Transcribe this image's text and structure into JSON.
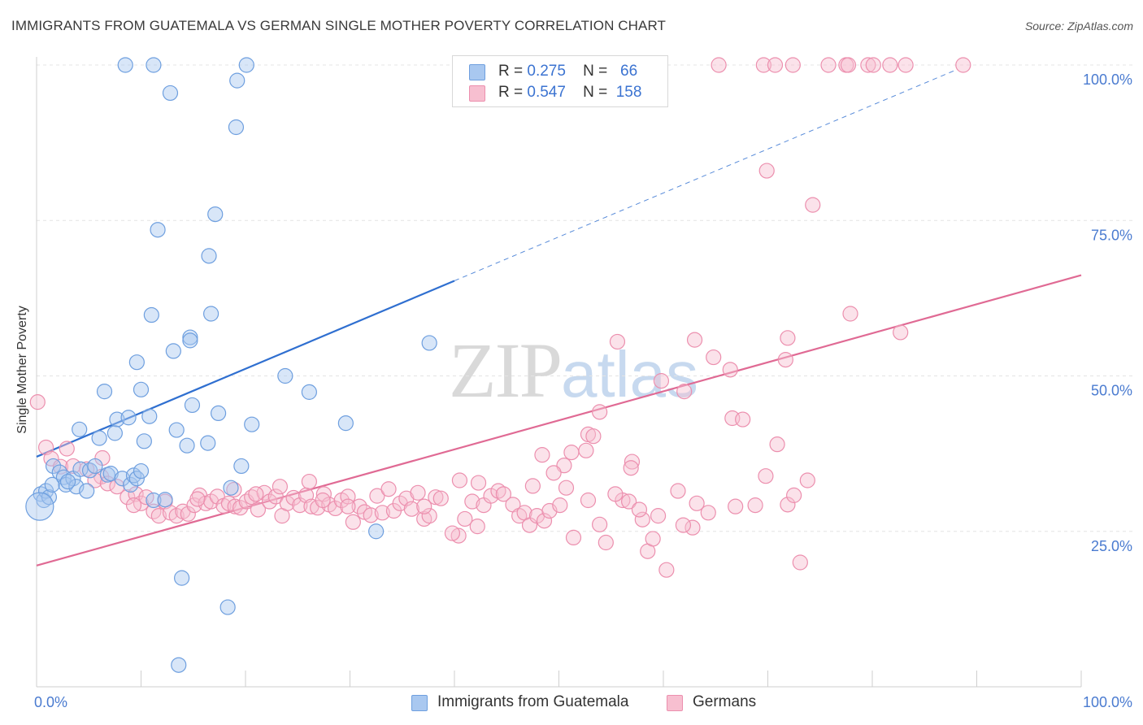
{
  "title": "IMMIGRANTS FROM GUATEMALA VS GERMAN SINGLE MOTHER POVERTY CORRELATION CHART",
  "source": "Source: ZipAtlas.com",
  "watermark": {
    "zip": "ZIP",
    "atlas": "atlas"
  },
  "legend": {
    "r_label": "R =",
    "n_label": "N =",
    "series": [
      {
        "r": "0.275",
        "n": "66",
        "color": "#a9c8f0",
        "border": "#6e9fdf"
      },
      {
        "r": "0.547",
        "n": "158",
        "color": "#f7bfd0",
        "border": "#ec8fae"
      }
    ]
  },
  "bottom_legend": [
    "Immigrants from Guatemala",
    "Germans"
  ],
  "chart_data": {
    "type": "scatter",
    "title": "IMMIGRANTS FROM GUATEMALA VS GERMAN SINGLE MOTHER POVERTY CORRELATION CHART",
    "xlabel": "",
    "ylabel": "Single Mother Poverty",
    "xlim": [
      0,
      100
    ],
    "ylim": [
      0,
      102
    ],
    "x_tick_labels": [
      "0.0%",
      "100.0%"
    ],
    "y_tick_labels": [
      "25.0%",
      "50.0%",
      "75.0%",
      "100.0%"
    ],
    "y_ticks": [
      25,
      50,
      75,
      100
    ],
    "grid": true,
    "legend_position": "top-center",
    "series": [
      {
        "name": "Immigrants from Guatemala",
        "color": "#6e9fdf",
        "fill": "rgba(169,200,240,0.45)",
        "trend": {
          "x0": 0,
          "y0": 37.0,
          "x1": 40,
          "y1": 65.3,
          "dash_to_x": 88,
          "dash_to_y": 99.2,
          "color": "#2f6fd0"
        },
        "points": [
          [
            8.5,
            100
          ],
          [
            11.2,
            100
          ],
          [
            20.1,
            100
          ],
          [
            19.2,
            97.5
          ],
          [
            12.8,
            95.5
          ],
          [
            19.1,
            90
          ],
          [
            17.1,
            76
          ],
          [
            11.6,
            73.5
          ],
          [
            16.5,
            69.3
          ],
          [
            16.7,
            60
          ],
          [
            11,
            59.8
          ],
          [
            14.7,
            56.2
          ],
          [
            14.7,
            55.7
          ],
          [
            37.6,
            55.3
          ],
          [
            13.1,
            54
          ],
          [
            9.6,
            52.2
          ],
          [
            23.8,
            50
          ],
          [
            10,
            47.8
          ],
          [
            6.5,
            47.5
          ],
          [
            26.1,
            47.4
          ],
          [
            14.9,
            45.3
          ],
          [
            7.7,
            43
          ],
          [
            8.8,
            43.3
          ],
          [
            10.8,
            43.5
          ],
          [
            17.4,
            44
          ],
          [
            29.6,
            42.4
          ],
          [
            20.6,
            42.2
          ],
          [
            4.1,
            41.4
          ],
          [
            13.4,
            41.3
          ],
          [
            7.5,
            40.8
          ],
          [
            6,
            40
          ],
          [
            10.3,
            39.5
          ],
          [
            14.4,
            38.8
          ],
          [
            16.4,
            39.2
          ],
          [
            0.4,
            31
          ],
          [
            0.7,
            30
          ],
          [
            0.9,
            31.5
          ],
          [
            1.2,
            30.5
          ],
          [
            1.5,
            32.5
          ],
          [
            1.6,
            35.5
          ],
          [
            2.2,
            34.5
          ],
          [
            2.6,
            33.7
          ],
          [
            2.8,
            32.5
          ],
          [
            3.5,
            33.5
          ],
          [
            3.8,
            32.2
          ],
          [
            4.2,
            35
          ],
          [
            5.1,
            34.8
          ],
          [
            5.6,
            35.5
          ],
          [
            6.8,
            34.1
          ],
          [
            7.1,
            34.3
          ],
          [
            8.2,
            33.5
          ],
          [
            9,
            32.5
          ],
          [
            9.3,
            34
          ],
          [
            9.6,
            33.5
          ],
          [
            10,
            34.7
          ],
          [
            11.2,
            30
          ],
          [
            4.8,
            31.5
          ],
          [
            19.6,
            35.5
          ],
          [
            18.6,
            32
          ],
          [
            18.3,
            12.8
          ],
          [
            13.9,
            17.5
          ],
          [
            13.6,
            3.5
          ],
          [
            32.5,
            25
          ],
          [
            12.3,
            30.1
          ],
          [
            3,
            33
          ],
          [
            0.3,
            29
          ]
        ]
      },
      {
        "name": "Germans",
        "color": "#ec8fae",
        "fill": "rgba(247,191,208,0.45)",
        "trend": {
          "x0": 0,
          "y0": 19.5,
          "x1": 100,
          "y1": 66.2,
          "color": "#e06a94"
        },
        "points": [
          [
            65.3,
            100
          ],
          [
            69.6,
            100
          ],
          [
            70.7,
            100
          ],
          [
            72.4,
            100
          ],
          [
            75.8,
            100
          ],
          [
            77.5,
            100
          ],
          [
            77.7,
            100
          ],
          [
            79.6,
            100
          ],
          [
            80.1,
            100
          ],
          [
            81.7,
            100
          ],
          [
            83.2,
            100
          ],
          [
            88.7,
            100
          ],
          [
            69.9,
            83
          ],
          [
            74.3,
            77.5
          ],
          [
            77.9,
            60
          ],
          [
            82.7,
            57
          ],
          [
            71.9,
            56.1
          ],
          [
            63,
            55.8
          ],
          [
            55.6,
            55.5
          ],
          [
            64.8,
            53
          ],
          [
            71.7,
            52.6
          ],
          [
            66.4,
            51
          ],
          [
            59.8,
            49.2
          ],
          [
            62,
            47.5
          ],
          [
            66.6,
            43.2
          ],
          [
            67.6,
            43
          ],
          [
            53.9,
            44.2
          ],
          [
            52.8,
            40.6
          ],
          [
            53.3,
            40.3
          ],
          [
            52.6,
            38
          ],
          [
            70.9,
            39
          ],
          [
            48.4,
            37.3
          ],
          [
            51.2,
            37.7
          ],
          [
            57,
            36.2
          ],
          [
            50.5,
            35.6
          ],
          [
            56.9,
            35.2
          ],
          [
            49.5,
            34.4
          ],
          [
            69.8,
            33.9
          ],
          [
            73.8,
            33.2
          ],
          [
            40.5,
            33.2
          ],
          [
            47.5,
            32.3
          ],
          [
            50.7,
            32
          ],
          [
            61.4,
            31.5
          ],
          [
            0.1,
            45.8
          ],
          [
            0.9,
            38.5
          ],
          [
            1.4,
            36.7
          ],
          [
            2.3,
            35.4
          ],
          [
            3.5,
            35.5
          ],
          [
            4.8,
            35
          ],
          [
            6.2,
            33.8
          ],
          [
            5.6,
            33.2
          ],
          [
            6.8,
            32.7
          ],
          [
            7.7,
            32.2
          ],
          [
            8.7,
            30.5
          ],
          [
            9.5,
            31
          ],
          [
            10,
            29.5
          ],
          [
            10.5,
            30.5
          ],
          [
            11.2,
            28.2
          ],
          [
            11.7,
            27.5
          ],
          [
            12.3,
            29.8
          ],
          [
            12.8,
            28
          ],
          [
            13.4,
            27.5
          ],
          [
            14,
            28.2
          ],
          [
            14.5,
            27.8
          ],
          [
            15.1,
            29.2
          ],
          [
            15.6,
            30.8
          ],
          [
            16.2,
            29.5
          ],
          [
            16.7,
            29.8
          ],
          [
            17.3,
            30.6
          ],
          [
            17.9,
            29.1
          ],
          [
            18.4,
            29.5
          ],
          [
            19,
            29
          ],
          [
            19.5,
            28.8
          ],
          [
            20.1,
            29.8
          ],
          [
            20.6,
            30.5
          ],
          [
            21.2,
            28.5
          ],
          [
            21.8,
            31.2
          ],
          [
            22.3,
            29.8
          ],
          [
            22.9,
            30.6
          ],
          [
            23.5,
            27.5
          ],
          [
            24,
            29.5
          ],
          [
            24.6,
            30.4
          ],
          [
            25.2,
            29.2
          ],
          [
            25.8,
            30.8
          ],
          [
            26.3,
            29
          ],
          [
            26.9,
            28.8
          ],
          [
            27.5,
            31
          ],
          [
            28,
            29.3
          ],
          [
            28.6,
            28.7
          ],
          [
            29.2,
            30
          ],
          [
            29.8,
            30.6
          ],
          [
            30.3,
            26.5
          ],
          [
            30.9,
            29
          ],
          [
            31.4,
            28.1
          ],
          [
            32,
            27.6
          ],
          [
            32.6,
            30.7
          ],
          [
            33.1,
            28
          ],
          [
            33.7,
            31.8
          ],
          [
            34.2,
            28.3
          ],
          [
            34.8,
            29.5
          ],
          [
            35.4,
            30.3
          ],
          [
            35.9,
            28.6
          ],
          [
            36.5,
            31.2
          ],
          [
            37.1,
            27
          ],
          [
            37.6,
            27.5
          ],
          [
            38.2,
            30.5
          ],
          [
            38.7,
            30.3
          ],
          [
            40.4,
            24.3
          ],
          [
            39.8,
            24.7
          ],
          [
            41,
            27
          ],
          [
            41.7,
            29.8
          ],
          [
            42.2,
            25.8
          ],
          [
            42.8,
            29.2
          ],
          [
            43.5,
            30.7
          ],
          [
            44.2,
            31.5
          ],
          [
            44.7,
            31
          ],
          [
            45.6,
            29.3
          ],
          [
            46.2,
            27.5
          ],
          [
            46.7,
            28
          ],
          [
            47.2,
            26
          ],
          [
            47.9,
            27.5
          ],
          [
            48.6,
            26.7
          ],
          [
            49.1,
            28.3
          ],
          [
            50.1,
            29.2
          ],
          [
            51.4,
            24
          ],
          [
            52.8,
            30
          ],
          [
            53.9,
            26.1
          ],
          [
            54.5,
            23.2
          ],
          [
            56.1,
            30
          ],
          [
            56.7,
            29.8
          ],
          [
            58,
            26.9
          ],
          [
            58.5,
            21.8
          ],
          [
            59,
            23.8
          ],
          [
            59.5,
            27.5
          ],
          [
            60.3,
            18.8
          ],
          [
            62.8,
            25.6
          ],
          [
            63.2,
            29.5
          ],
          [
            61.9,
            26
          ],
          [
            71.9,
            29.3
          ],
          [
            68.8,
            29.2
          ],
          [
            72.5,
            30.8
          ],
          [
            73.1,
            20
          ],
          [
            29.8,
            29
          ],
          [
            2.9,
            38.3
          ],
          [
            21,
            31
          ],
          [
            15.4,
            30.2
          ],
          [
            9.3,
            29.2
          ],
          [
            27.4,
            30
          ],
          [
            37.1,
            29
          ],
          [
            6.3,
            36.8
          ],
          [
            64.3,
            28
          ],
          [
            57.7,
            28.5
          ],
          [
            66.9,
            29
          ],
          [
            55.4,
            31
          ],
          [
            42.3,
            32.8
          ],
          [
            23.3,
            32.2
          ],
          [
            18.9,
            31.7
          ],
          [
            26.1,
            33
          ]
        ]
      }
    ]
  }
}
